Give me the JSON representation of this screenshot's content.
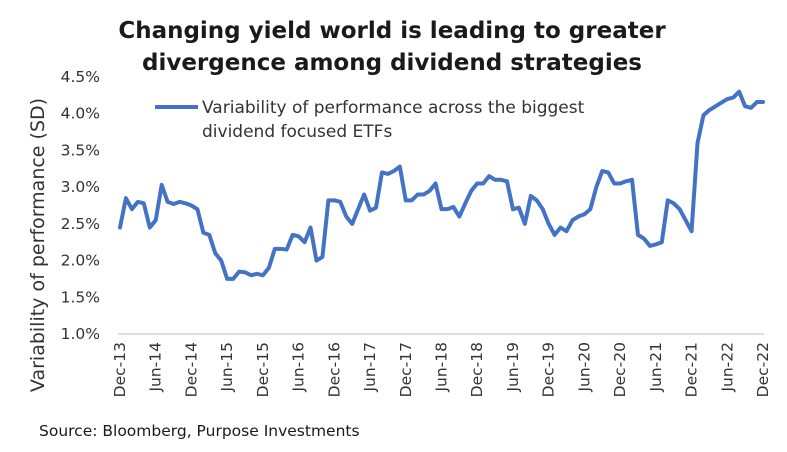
{
  "chart_data": {
    "type": "line",
    "title_lines": [
      "Changing yield world is leading to greater",
      "divergence among dividend strategies"
    ],
    "ylabel": "Variability of performance (SD)",
    "xlabel": "",
    "ylim": [
      1.0,
      4.5
    ],
    "y_ticks": [
      "1.0%",
      "1.5%",
      "2.0%",
      "2.5%",
      "3.0%",
      "3.5%",
      "4.0%",
      "4.5%"
    ],
    "x_ticks": [
      "Dec-13",
      "Jun-14",
      "Dec-14",
      "Jun-15",
      "Dec-15",
      "Jun-16",
      "Dec-16",
      "Jun-17",
      "Dec-17",
      "Jun-18",
      "Dec-18",
      "Jun-19",
      "Dec-19",
      "Jun-20",
      "Dec-20",
      "Jun-21",
      "Dec-21",
      "Jun-22",
      "Dec-22"
    ],
    "legend_lines": [
      "Variability of performance across the biggest",
      "dividend focused ETFs"
    ],
    "series": [
      {
        "name": "Variability of performance across the biggest dividend focused ETFs",
        "color": "#4472C4",
        "start": "Dec-13",
        "frequency": "monthly",
        "values": [
          2.45,
          2.85,
          2.7,
          2.8,
          2.78,
          2.45,
          2.55,
          3.03,
          2.8,
          2.77,
          2.8,
          2.78,
          2.75,
          2.7,
          2.38,
          2.35,
          2.1,
          2.0,
          1.75,
          1.75,
          1.85,
          1.84,
          1.8,
          1.82,
          1.8,
          1.9,
          2.16,
          2.16,
          2.15,
          2.35,
          2.33,
          2.25,
          2.45,
          2.0,
          2.05,
          2.82,
          2.82,
          2.8,
          2.6,
          2.5,
          2.7,
          2.9,
          2.68,
          2.72,
          3.2,
          3.18,
          3.22,
          3.28,
          2.82,
          2.82,
          2.9,
          2.9,
          2.95,
          3.05,
          2.7,
          2.7,
          2.73,
          2.6,
          2.78,
          2.95,
          3.05,
          3.05,
          3.15,
          3.1,
          3.1,
          3.08,
          2.7,
          2.72,
          2.5,
          2.88,
          2.82,
          2.7,
          2.5,
          2.35,
          2.45,
          2.4,
          2.55,
          2.6,
          2.63,
          2.7,
          3.0,
          3.22,
          3.2,
          3.05,
          3.05,
          3.08,
          3.1,
          2.35,
          2.3,
          2.2,
          2.22,
          2.25,
          2.82,
          2.78,
          2.7,
          2.55,
          2.4,
          3.6,
          3.98,
          4.05,
          4.1,
          4.15,
          4.2,
          4.22,
          4.3,
          4.1,
          4.08,
          4.16,
          4.16
        ]
      }
    ],
    "grid": false,
    "legend": "top-left",
    "source": "Source: Bloomberg, Purpose Investments"
  }
}
